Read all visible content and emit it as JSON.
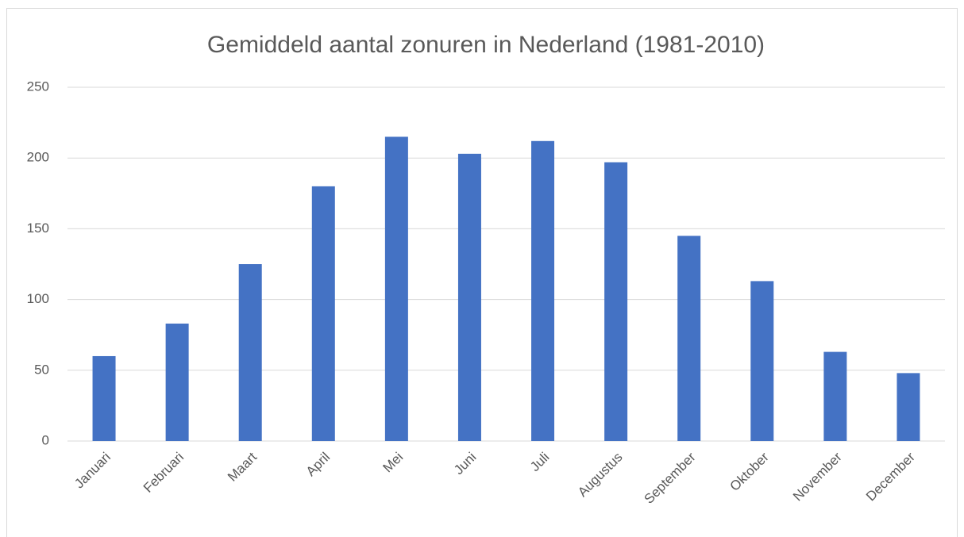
{
  "chart_data": {
    "type": "bar",
    "title": "Gemiddeld aantal zonuren in Nederland (1981-2010)",
    "categories": [
      "Januari",
      "Februari",
      "Maart",
      "April",
      "Mei",
      "Juni",
      "Juli",
      "Augustus",
      "September",
      "Oktober",
      "November",
      "December"
    ],
    "values": [
      60,
      83,
      125,
      180,
      215,
      203,
      212,
      197,
      145,
      113,
      63,
      48
    ],
    "color": "#4472c4",
    "ylim": [
      0,
      250
    ],
    "yticks": [
      0,
      50,
      100,
      150,
      200,
      250
    ],
    "grid": true
  }
}
